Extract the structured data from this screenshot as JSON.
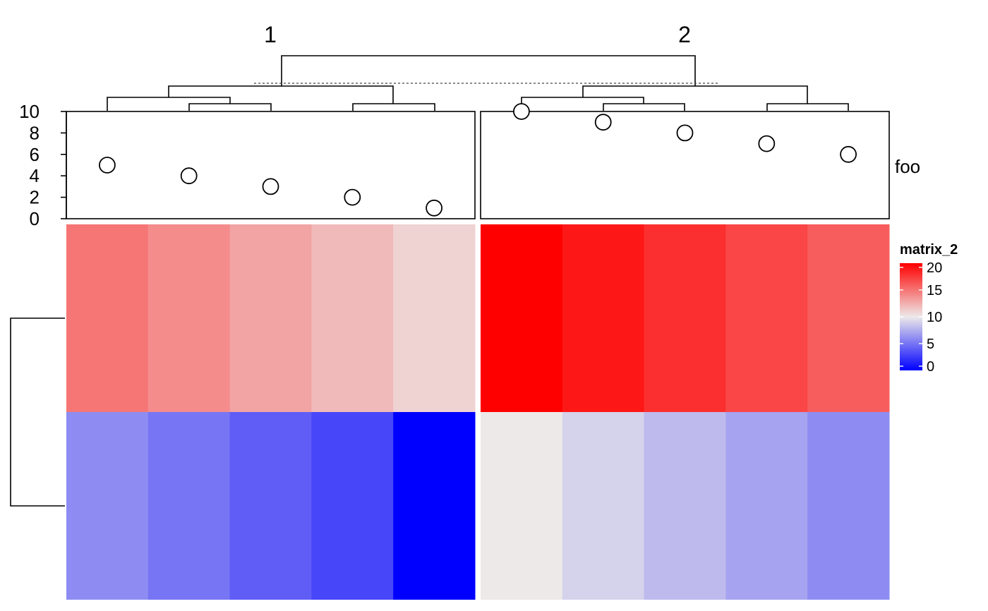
{
  "chart_data": {
    "type": "heatmap",
    "column_split_titles": [
      "1",
      "2"
    ],
    "columns_per_split": [
      5,
      5
    ],
    "rows": 2,
    "matrix": [
      [
        15,
        14,
        13,
        12,
        11,
        20,
        19,
        18,
        17,
        16
      ],
      [
        6,
        5,
        4,
        3,
        0,
        10,
        9,
        8,
        7,
        6
      ]
    ],
    "color_scale": {
      "low_value": 0,
      "mid_value": 10,
      "high_value": 20,
      "low_color": "#0000ff",
      "mid_color": "#ede9e9",
      "high_color": "#ff0000"
    },
    "top_annotation": {
      "name": "foo",
      "type": "points",
      "values": [
        5,
        4,
        3,
        2,
        1,
        10,
        9,
        8,
        7,
        6
      ],
      "ylim": [
        0,
        10
      ],
      "ticks": [
        "0",
        "2",
        "4",
        "6",
        "8",
        "10"
      ]
    },
    "legend": {
      "title": "matrix_2",
      "ticks": [
        "0",
        "5",
        "10",
        "15",
        "20"
      ]
    },
    "column_dendrogram": "present",
    "row_dendrogram": "present"
  }
}
